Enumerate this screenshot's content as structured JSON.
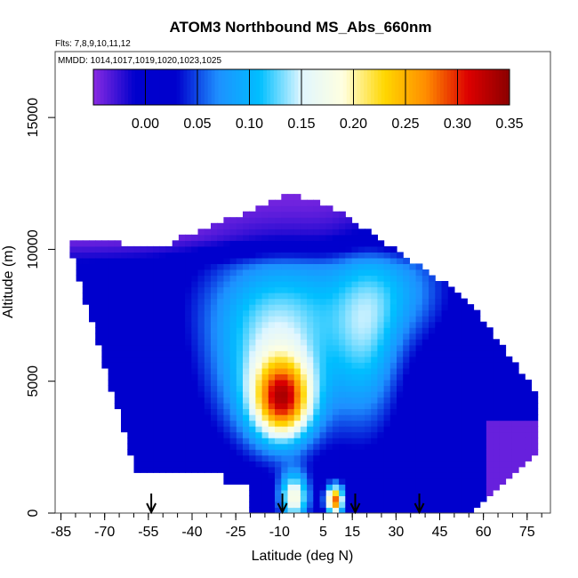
{
  "chart_data": {
    "type": "heatmap",
    "title": "ATOM3 Northbound MS_Abs_660nm",
    "flights_note": "Flts: 7,8,9,10,11,12",
    "dates_note": "MMDD: 1014,1017,1019,1020,1023,1025",
    "xlabel": "Latitude (deg N)",
    "ylabel": "Altitude (m)",
    "xlim": [
      -87,
      83
    ],
    "ylim": [
      0,
      17500
    ],
    "x_ticks": [
      -85,
      -70,
      -55,
      -40,
      -25,
      -10,
      5,
      15,
      30,
      45,
      60,
      75
    ],
    "x_tick_labels": [
      "-85",
      "-70",
      "-55",
      "-40",
      "-25",
      "-10",
      "5",
      "15",
      "30",
      "45",
      "60",
      "75"
    ],
    "y_ticks": [
      0,
      5000,
      10000,
      15000
    ],
    "y_tick_labels": [
      "0",
      "5000",
      "10000",
      "15000"
    ],
    "colorbar": {
      "range": [
        -0.05,
        0.35
      ],
      "ticks": [
        0.0,
        0.05,
        0.1,
        0.15,
        0.2,
        0.25,
        0.3,
        0.35
      ],
      "tick_labels": [
        "0.00",
        "0.05",
        "0.10",
        "0.15",
        "0.20",
        "0.25",
        "0.30",
        "0.35"
      ],
      "colors": [
        "#8a2be2",
        "#0000cd",
        "#0000cd",
        "#1e90ff",
        "#00bfff",
        "#e0f6ff",
        "#ffffe0",
        "#ffd700",
        "#ff8c00",
        "#dd0000",
        "#8b0000"
      ]
    },
    "arrow_latitudes": [
      -54,
      -9,
      16,
      38
    ]
  }
}
